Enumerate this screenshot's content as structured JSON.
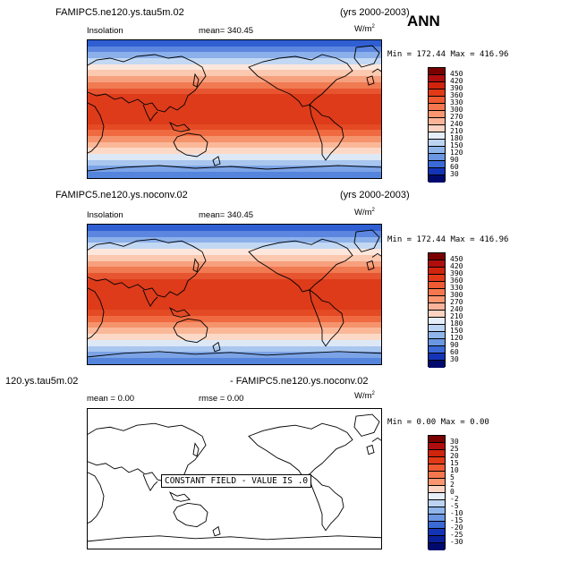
{
  "annotation": "ANN",
  "panels": [
    {
      "case": "FAMIPC5.ne120.ys.tau5m.02",
      "years": "(yrs 2000-2003)",
      "variable": "Insolation",
      "mean_label": "mean= 340.45",
      "units_base": "W/m",
      "units_exp": "2",
      "minmax": "Min = 172.44 Max = 416.96",
      "colorbar": {
        "labels": [
          "450",
          "420",
          "390",
          "360",
          "330",
          "300",
          "270",
          "240",
          "210",
          "180",
          "150",
          "120",
          "90",
          "60",
          "30"
        ],
        "colors": [
          "#7a0000",
          "#b00e0e",
          "#d0240c",
          "#e23a16",
          "#ef5a32",
          "#f5774e",
          "#f99670",
          "#fbb499",
          "#fcd3c2",
          "#e6eef9",
          "#bcd4f2",
          "#8fb5ea",
          "#6a96e2",
          "#3b6ad7",
          "#1434b8",
          "#000a6e"
        ]
      }
    },
    {
      "case": "FAMIPC5.ne120.ys.noconv.02",
      "years": "(yrs 2000-2003)",
      "variable": "Insolation",
      "mean_label": "mean= 340.45",
      "units_base": "W/m",
      "units_exp": "2",
      "minmax": "Min = 172.44 Max = 416.96",
      "colorbar": {
        "labels": [
          "450",
          "420",
          "390",
          "360",
          "330",
          "300",
          "270",
          "240",
          "210",
          "180",
          "150",
          "120",
          "90",
          "60",
          "30"
        ],
        "colors": [
          "#7a0000",
          "#b00e0e",
          "#d0240c",
          "#e23a16",
          "#ef5a32",
          "#f5774e",
          "#f99670",
          "#fbb499",
          "#fcd3c2",
          "#e6eef9",
          "#bcd4f2",
          "#8fb5ea",
          "#6a96e2",
          "#3b6ad7",
          "#1434b8",
          "#000a6e"
        ]
      }
    },
    {
      "case_left": "120.ys.tau5m.02",
      "case_right": "- FAMIPC5.ne120.ys.noconv.02",
      "mean_label": "mean =    0.00",
      "rmse_label": "rmse =    0.00",
      "units_base": "W/m",
      "units_exp": "2",
      "minmax": "Min =   0.00 Max =   0.00",
      "constant_field": "CONSTANT FIELD - VALUE IS .0",
      "colorbar": {
        "labels": [
          "30",
          "25",
          "20",
          "15",
          "10",
          "5",
          "2",
          "0",
          "-2",
          "-5",
          "-10",
          "-15",
          "-20",
          "-25",
          "-30"
        ],
        "colors": [
          "#7a0000",
          "#b00e0e",
          "#d0240c",
          "#e23a16",
          "#ef5a32",
          "#f5774e",
          "#f99670",
          "#fcd3c2",
          "#e6eef9",
          "#bcd4f2",
          "#8fb5ea",
          "#6a96e2",
          "#3b6ad7",
          "#1434b8",
          "#0a1f9a",
          "#000a6e"
        ]
      }
    }
  ],
  "insolation_bands": [
    "#2f5fd2",
    "#5c86df",
    "#8cb0ea",
    "#c3d8f3",
    "#fde7dc",
    "#fbc8b0",
    "#f7a07e",
    "#f07a52",
    "#e75530",
    "#dd3b1a",
    "#dd3b1a",
    "#dd3b1a",
    "#dd3b1a",
    "#dd3b1a",
    "#e44a24",
    "#ef6a40",
    "#f5936c",
    "#fab899",
    "#fcd9c6",
    "#dde8f7",
    "#a9c6ef",
    "#7ba3e6",
    "#5584dd"
  ]
}
